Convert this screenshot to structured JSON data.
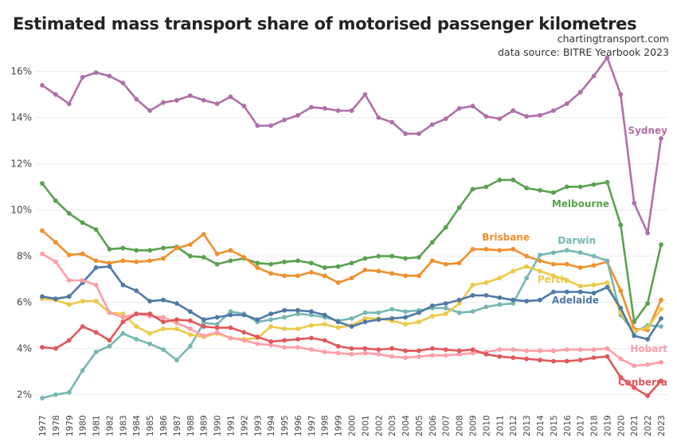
{
  "header": {
    "title": "Estimated mass transport share of motorised passenger kilometres",
    "source_line1": "chartingtransport.com",
    "source_line2": "data source: BITRE Yearbook 2023"
  },
  "chart_data": {
    "type": "line",
    "title": "Estimated mass transport share of motorised passenger kilometres",
    "xlabel": "",
    "ylabel": "",
    "ylim": [
      1.5,
      17.3
    ],
    "y_ticks": [
      2,
      4,
      6,
      8,
      10,
      12,
      14,
      16
    ],
    "y_tick_labels": [
      "2%",
      "4%",
      "6%",
      "8%",
      "10%",
      "12%",
      "14%",
      "16%"
    ],
    "grid": true,
    "legend": "labels at line ends",
    "x": [
      1977,
      1978,
      1979,
      1980,
      1981,
      1982,
      1983,
      1984,
      1985,
      1986,
      1987,
      1988,
      1989,
      1990,
      1991,
      1992,
      1993,
      1994,
      1995,
      1996,
      1997,
      1998,
      1999,
      2000,
      2001,
      2002,
      2003,
      2004,
      2005,
      2006,
      2007,
      2008,
      2009,
      2010,
      2011,
      2012,
      2013,
      2014,
      2015,
      2016,
      2017,
      2018,
      2019,
      2020,
      2021,
      2022,
      2023
    ],
    "series": [
      {
        "name": "Sydney",
        "color": "#b06fa8",
        "values": [
          15.4,
          15.0,
          14.6,
          15.75,
          15.95,
          15.8,
          15.5,
          14.8,
          14.3,
          14.65,
          14.75,
          14.95,
          14.75,
          14.6,
          14.9,
          14.5,
          13.65,
          13.65,
          13.9,
          14.1,
          14.45,
          14.4,
          14.3,
          14.3,
          15.0,
          14.0,
          13.8,
          13.3,
          13.3,
          13.7,
          13.95,
          14.4,
          14.5,
          14.05,
          13.95,
          14.3,
          14.05,
          14.1,
          14.3,
          14.6,
          15.1,
          15.8,
          16.6,
          15.0,
          10.3,
          9.0,
          13.1
        ]
      },
      {
        "name": "Melbourne",
        "color": "#59a14f",
        "values": [
          11.15,
          10.4,
          9.85,
          9.45,
          9.15,
          8.3,
          8.35,
          8.25,
          8.25,
          8.35,
          8.4,
          8.0,
          7.95,
          7.65,
          7.8,
          7.9,
          7.7,
          7.65,
          7.75,
          7.8,
          7.7,
          7.5,
          7.55,
          7.7,
          7.9,
          8.0,
          8.0,
          7.9,
          7.95,
          8.6,
          9.25,
          10.1,
          10.9,
          11.0,
          11.3,
          11.3,
          10.95,
          10.85,
          10.75,
          11.0,
          11.0,
          11.1,
          11.2,
          9.35,
          5.15,
          5.95,
          8.5
        ]
      },
      {
        "name": "Brisbane",
        "color": "#f28e2b",
        "values": [
          9.1,
          8.6,
          8.05,
          8.1,
          7.8,
          7.7,
          7.8,
          7.75,
          7.8,
          7.9,
          8.35,
          8.5,
          8.95,
          8.1,
          8.25,
          7.95,
          7.5,
          7.25,
          7.15,
          7.15,
          7.3,
          7.15,
          6.85,
          7.05,
          7.4,
          7.35,
          7.25,
          7.15,
          7.15,
          7.8,
          7.65,
          7.7,
          8.3,
          8.3,
          8.25,
          8.3,
          8.0,
          7.8,
          7.65,
          7.65,
          7.5,
          7.6,
          7.75,
          6.5,
          4.85,
          4.8,
          6.1
        ]
      },
      {
        "name": "Darwin",
        "color": "#76b7b2",
        "values": [
          1.85,
          2.0,
          2.1,
          3.05,
          3.85,
          4.1,
          4.65,
          4.4,
          4.2,
          3.95,
          3.5,
          4.1,
          5.1,
          5.05,
          5.6,
          5.5,
          5.15,
          5.25,
          5.35,
          5.5,
          5.45,
          5.35,
          5.2,
          5.3,
          5.55,
          5.55,
          5.7,
          5.6,
          5.65,
          5.75,
          5.75,
          5.55,
          5.6,
          5.8,
          5.9,
          5.95,
          7.05,
          8.05,
          8.15,
          8.25,
          8.15,
          8.0,
          7.8,
          5.45,
          4.7,
          5.0,
          4.95
        ]
      },
      {
        "name": "Perth",
        "color": "#edc948",
        "values": [
          6.15,
          6.1,
          5.9,
          6.05,
          6.05,
          5.55,
          5.5,
          4.95,
          4.65,
          4.85,
          4.85,
          4.6,
          4.5,
          4.65,
          4.45,
          4.4,
          4.45,
          4.95,
          4.85,
          4.85,
          5.0,
          5.05,
          4.9,
          5.0,
          5.3,
          5.3,
          5.2,
          5.05,
          5.15,
          5.4,
          5.5,
          5.95,
          6.75,
          6.85,
          7.05,
          7.35,
          7.55,
          7.35,
          7.15,
          6.95,
          6.7,
          6.75,
          6.85,
          5.55,
          4.75,
          4.9,
          5.7
        ]
      },
      {
        "name": "Adelaide",
        "color": "#4e79a7",
        "values": [
          6.25,
          6.15,
          6.25,
          6.85,
          7.5,
          7.55,
          6.75,
          6.5,
          6.05,
          6.1,
          5.95,
          5.6,
          5.25,
          5.35,
          5.45,
          5.45,
          5.25,
          5.5,
          5.65,
          5.65,
          5.6,
          5.45,
          5.15,
          4.95,
          5.15,
          5.25,
          5.3,
          5.35,
          5.55,
          5.85,
          5.95,
          6.1,
          6.3,
          6.3,
          6.2,
          6.1,
          6.05,
          6.1,
          6.45,
          6.45,
          6.45,
          6.4,
          6.65,
          5.75,
          4.55,
          4.4,
          5.3
        ]
      },
      {
        "name": "Hobart",
        "color": "#ff9da7",
        "values": [
          8.1,
          7.75,
          6.95,
          6.95,
          6.75,
          5.55,
          5.35,
          5.5,
          5.4,
          5.35,
          5.1,
          4.85,
          4.55,
          4.7,
          4.45,
          4.35,
          4.2,
          4.15,
          4.05,
          4.05,
          3.95,
          3.85,
          3.8,
          3.75,
          3.8,
          3.75,
          3.65,
          3.6,
          3.65,
          3.7,
          3.7,
          3.75,
          3.8,
          3.85,
          3.95,
          3.95,
          3.9,
          3.9,
          3.9,
          3.95,
          3.95,
          3.95,
          4.0,
          3.55,
          3.25,
          3.3,
          3.4
        ]
      },
      {
        "name": "Canberra",
        "color": "#e15759",
        "values": [
          4.05,
          4.0,
          4.35,
          4.95,
          4.7,
          4.35,
          5.15,
          5.5,
          5.5,
          5.15,
          5.25,
          5.2,
          4.95,
          4.9,
          4.9,
          4.7,
          4.5,
          4.3,
          4.35,
          4.4,
          4.45,
          4.35,
          4.1,
          4.0,
          4.0,
          3.95,
          4.0,
          3.9,
          3.9,
          4.0,
          3.95,
          3.9,
          3.95,
          3.75,
          3.65,
          3.6,
          3.55,
          3.5,
          3.45,
          3.45,
          3.5,
          3.6,
          3.65,
          2.75,
          2.3,
          1.95,
          2.6
        ]
      }
    ]
  }
}
